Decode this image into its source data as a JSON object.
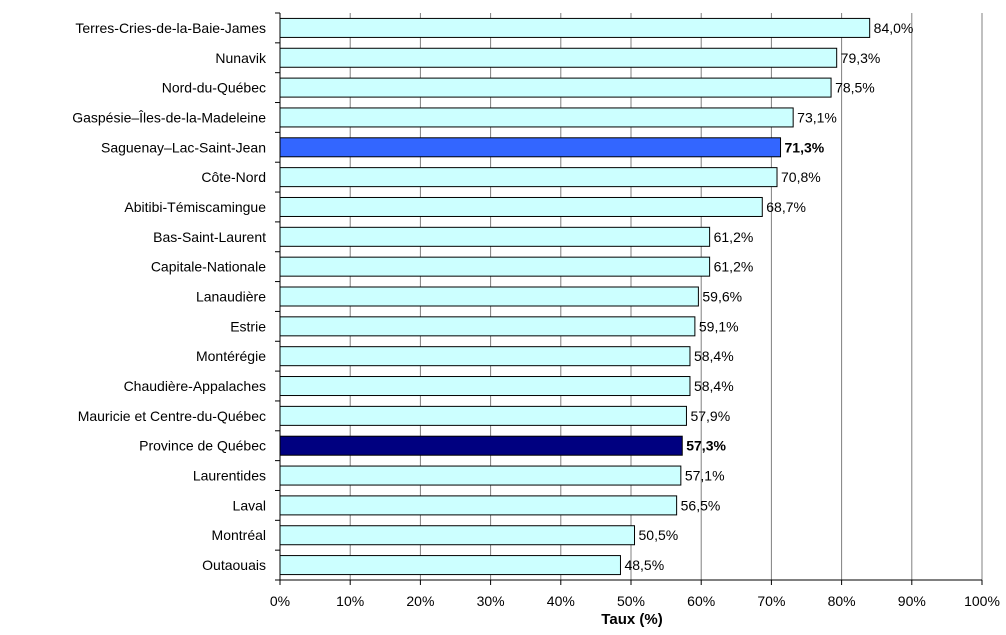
{
  "chart_data": {
    "type": "bar",
    "orientation": "horizontal",
    "xlabel": "Taux (%)",
    "xlim": [
      0,
      100
    ],
    "x_ticks": [
      "0%",
      "10%",
      "20%",
      "30%",
      "40%",
      "50%",
      "60%",
      "70%",
      "80%",
      "90%",
      "100%"
    ],
    "grid": "vertical gridlines",
    "legend": "none",
    "categories": [
      "Terres-Cries-de-la-Baie-James",
      "Nunavik",
      "Nord-du-Québec",
      "Gaspésie–Îles-de-la-Madeleine",
      "Saguenay–Lac-Saint-Jean",
      "Côte-Nord",
      "Abitibi-Témiscamingue",
      "Bas-Saint-Laurent",
      "Capitale-Nationale",
      "Lanaudière",
      "Estrie",
      "Montérégie",
      "Chaudière-Appalaches",
      "Mauricie et Centre-du-Québec",
      "Province de Québec",
      "Laurentides",
      "Laval",
      "Montréal",
      "Outaouais"
    ],
    "values": [
      84.0,
      79.3,
      78.5,
      73.1,
      71.3,
      70.8,
      68.7,
      61.2,
      61.2,
      59.6,
      59.1,
      58.4,
      58.4,
      57.9,
      57.3,
      57.1,
      56.5,
      50.5,
      48.5
    ],
    "value_labels": [
      "84,0%",
      "79,3%",
      "78,5%",
      "73,1%",
      "71,3%",
      "70,8%",
      "68,7%",
      "61,2%",
      "61,2%",
      "59,6%",
      "59,1%",
      "58,4%",
      "58,4%",
      "57,9%",
      "57,3%",
      "57,1%",
      "56,5%",
      "50,5%",
      "48,5%"
    ],
    "colors": {
      "default_bar": "#ccffff",
      "highlight_bar": "#3366ff",
      "province_bar": "#000080",
      "bar_border": "#000000",
      "grid": "#808080"
    },
    "highlighted": [
      "Saguenay–Lac-Saint-Jean",
      "Province de Québec"
    ]
  }
}
